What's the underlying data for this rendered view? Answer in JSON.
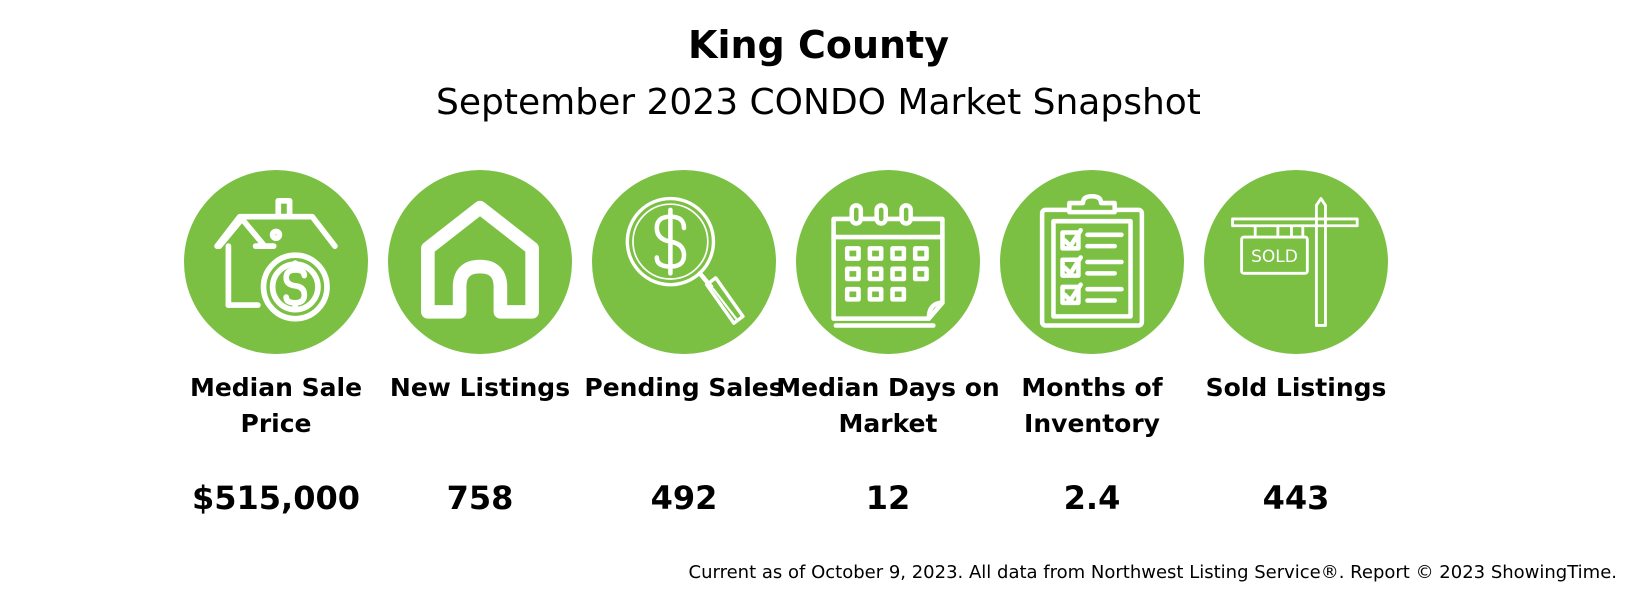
{
  "header": {
    "title": "King County",
    "subtitle": "September 2023 CONDO Market Snapshot"
  },
  "colors": {
    "circle": "#7bc043",
    "icon": "#ffffff",
    "text": "#000000"
  },
  "stats": [
    {
      "icon": "house-dollar-icon",
      "label": "Median Sale Price",
      "value": "$515,000"
    },
    {
      "icon": "house-icon",
      "label": "New Listings",
      "value": "758"
    },
    {
      "icon": "magnifier-dollar-icon",
      "label": "Pending Sales",
      "value": "492"
    },
    {
      "icon": "calendar-icon",
      "label": "Median Days on Market",
      "value": "12"
    },
    {
      "icon": "clipboard-checklist-icon",
      "label": "Months of Inventory",
      "value": "2.4"
    },
    {
      "icon": "sold-sign-icon",
      "label": "Sold Listings",
      "value": "443"
    }
  ],
  "sold_sign_text": "SOLD",
  "footer": "Current as of October 9, 2023. All data from Northwest  Listing Service®. Report © 2023 ShowingTime."
}
